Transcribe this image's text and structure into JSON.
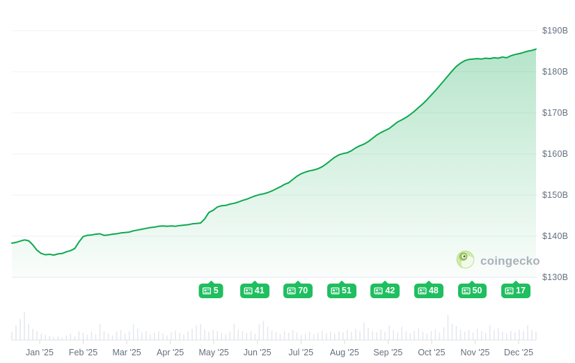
{
  "watermark": {
    "brand": "coingecko"
  },
  "news_markers": {
    "start_month_index": 4,
    "counts": [
      "5",
      "41",
      "70",
      "51",
      "42",
      "48",
      "50",
      "17"
    ]
  },
  "chart_data": {
    "type": "line",
    "title": "",
    "xlabel": "",
    "ylabel": "",
    "x_tick_labels": [
      "Jan '25",
      "Feb '25",
      "Mar '25",
      "Apr '25",
      "May '25",
      "Jun '25",
      "Jul '25",
      "Aug '25",
      "Sep '25",
      "Oct '25",
      "Nov '25",
      "Dec '25"
    ],
    "y_tick_labels": [
      "$190B",
      "$180B",
      "$170B",
      "$160B",
      "$150B",
      "$140B",
      "$130B"
    ],
    "ylim": [
      130,
      190
    ],
    "grid": true,
    "legend": false,
    "series": [
      {
        "name": "value_usd_billions",
        "values": [
          138.3,
          138.5,
          138.8,
          139.1,
          138.9,
          137.9,
          136.6,
          135.8,
          135.5,
          135.6,
          135.4,
          135.7,
          135.8,
          136.2,
          136.5,
          137.0,
          138.6,
          139.9,
          140.2,
          140.3,
          140.5,
          140.6,
          140.2,
          140.3,
          140.5,
          140.6,
          140.8,
          140.9,
          141.0,
          141.3,
          141.5,
          141.7,
          141.9,
          142.1,
          142.2,
          142.4,
          142.5,
          142.4,
          142.5,
          142.4,
          142.6,
          142.7,
          142.8,
          143.0,
          143.1,
          143.2,
          144.2,
          145.8,
          146.3,
          147.1,
          147.4,
          147.5,
          147.8,
          148.0,
          148.3,
          148.7,
          149.0,
          149.4,
          149.8,
          150.1,
          150.3,
          150.6,
          151.0,
          151.5,
          152.0,
          152.6,
          153.0,
          153.8,
          154.6,
          155.2,
          155.6,
          155.9,
          156.1,
          156.4,
          156.9,
          157.6,
          158.4,
          159.2,
          159.8,
          160.1,
          160.3,
          160.8,
          161.5,
          162.0,
          162.4,
          163.0,
          163.8,
          164.6,
          165.2,
          165.7,
          166.2,
          167.0,
          167.8,
          168.3,
          168.9,
          169.6,
          170.4,
          171.3,
          172.2,
          173.2,
          174.3,
          175.4,
          176.6,
          177.8,
          179.0,
          180.2,
          181.3,
          182.1,
          182.7,
          183.0,
          183.1,
          183.2,
          183.1,
          183.3,
          183.2,
          183.4,
          183.3,
          183.6,
          183.4,
          183.9,
          184.2,
          184.4,
          184.7,
          185.0,
          185.2,
          185.5
        ]
      }
    ],
    "volume_norm": [
      0.28,
      0.5,
      0.72,
      0.95,
      0.55,
      0.38,
      0.3,
      0.22,
      0.18,
      0.14,
      0.1,
      0.12,
      0.09,
      0.16,
      0.22,
      0.12,
      0.3,
      0.24,
      0.18,
      0.28,
      0.2,
      0.55,
      0.3,
      0.22,
      0.16,
      0.28,
      0.34,
      0.22,
      0.3,
      0.55,
      0.4,
      0.26,
      0.3,
      0.2,
      0.26,
      0.3,
      0.22,
      0.16,
      0.26,
      0.32,
      0.24,
      0.18,
      0.3,
      0.38,
      0.5,
      0.55,
      0.36,
      0.28,
      0.34,
      0.3,
      0.24,
      0.2,
      0.28,
      0.56,
      0.36,
      0.3,
      0.24,
      0.3,
      0.22,
      0.55,
      0.65,
      0.45,
      0.32,
      0.26,
      0.2,
      0.3,
      0.24,
      0.34,
      0.26,
      0.18,
      0.22,
      0.28,
      0.2,
      0.26,
      0.32,
      0.24,
      0.28,
      0.22,
      0.3,
      0.26,
      0.34,
      0.28,
      0.38,
      0.3,
      0.6,
      0.42,
      0.3,
      0.26,
      0.36,
      0.28,
      0.5,
      0.34,
      0.26,
      0.45,
      0.3,
      0.24,
      0.32,
      0.4,
      0.28,
      0.22,
      0.3,
      0.36,
      0.26,
      0.44,
      0.85,
      0.55,
      0.48,
      0.36,
      0.28,
      0.34,
      0.26,
      0.38,
      0.3,
      0.24,
      0.5,
      0.34,
      0.4,
      0.28,
      0.22,
      0.32,
      0.26,
      0.36,
      0.3,
      0.5,
      0.35,
      0.28
    ]
  },
  "colors": {
    "line": "#0ca84f",
    "fill_top": "rgba(14,168,80,0.30)",
    "fill_bottom": "rgba(14,168,80,0.02)",
    "grid": "#f0f2f4",
    "bottom_axis": "#e4e8ec",
    "volume_bar": "#e5e8ee",
    "volume_baseline": "#dde1e7",
    "tick": "#d8dde3",
    "badge_green": "#1fbe5f",
    "label_gray": "#64707f"
  }
}
